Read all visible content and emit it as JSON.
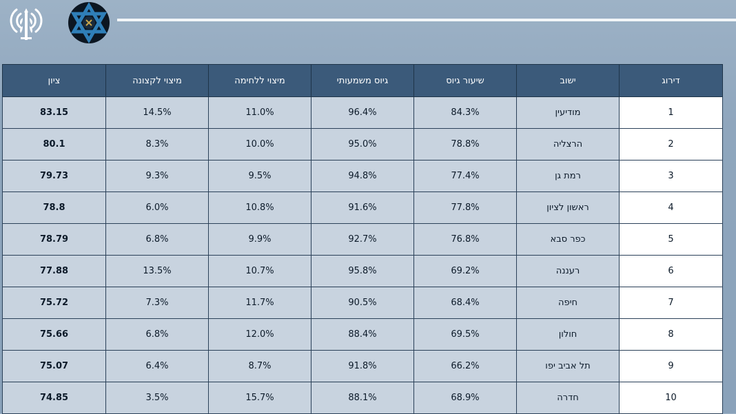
{
  "logos": {
    "left_emblem_icon": "antenna-sword-emblem-icon",
    "right_emblem_icon": "star-of-david-badge-icon"
  },
  "colors": {
    "header_bg": "#3b5a7a",
    "cell_bg": "#c8d3df",
    "rank_cell_bg": "#ffffff",
    "page_bg": "#8fa6bd"
  },
  "table": {
    "headers": [
      "דירוג",
      "ישוב",
      "שיעור גיוס",
      "גיוס משמעותי",
      "מיצוי ללחימה",
      "מיצוי לקצונה",
      "ציון"
    ],
    "rows": [
      [
        "1",
        "מודיעין",
        "84.3%",
        "96.4%",
        "11.0%",
        "14.5%",
        "83.15"
      ],
      [
        "2",
        "הרצליה",
        "78.8%",
        "95.0%",
        "10.0%",
        "8.3%",
        "80.1"
      ],
      [
        "3",
        "רמת גן",
        "77.4%",
        "94.8%",
        "9.5%",
        "9.3%",
        "79.73"
      ],
      [
        "4",
        "ראשון לציון",
        "77.8%",
        "91.6%",
        "10.8%",
        "6.0%",
        "78.8"
      ],
      [
        "5",
        "כפר סבא",
        "76.8%",
        "92.7%",
        "9.9%",
        "6.8%",
        "78.79"
      ],
      [
        "6",
        "רעננה",
        "69.2%",
        "95.8%",
        "10.7%",
        "13.5%",
        "77.88"
      ],
      [
        "7",
        "חיפה",
        "68.4%",
        "90.5%",
        "11.7%",
        "7.3%",
        "75.72"
      ],
      [
        "8",
        "חולון",
        "69.5%",
        "88.4%",
        "12.0%",
        "6.8%",
        "75.66"
      ],
      [
        "9",
        "תל אביב יפו",
        "66.2%",
        "91.8%",
        "8.7%",
        "6.4%",
        "75.07"
      ],
      [
        "10",
        "חדרה",
        "68.9%",
        "88.1%",
        "15.7%",
        "3.5%",
        "74.85"
      ]
    ]
  }
}
